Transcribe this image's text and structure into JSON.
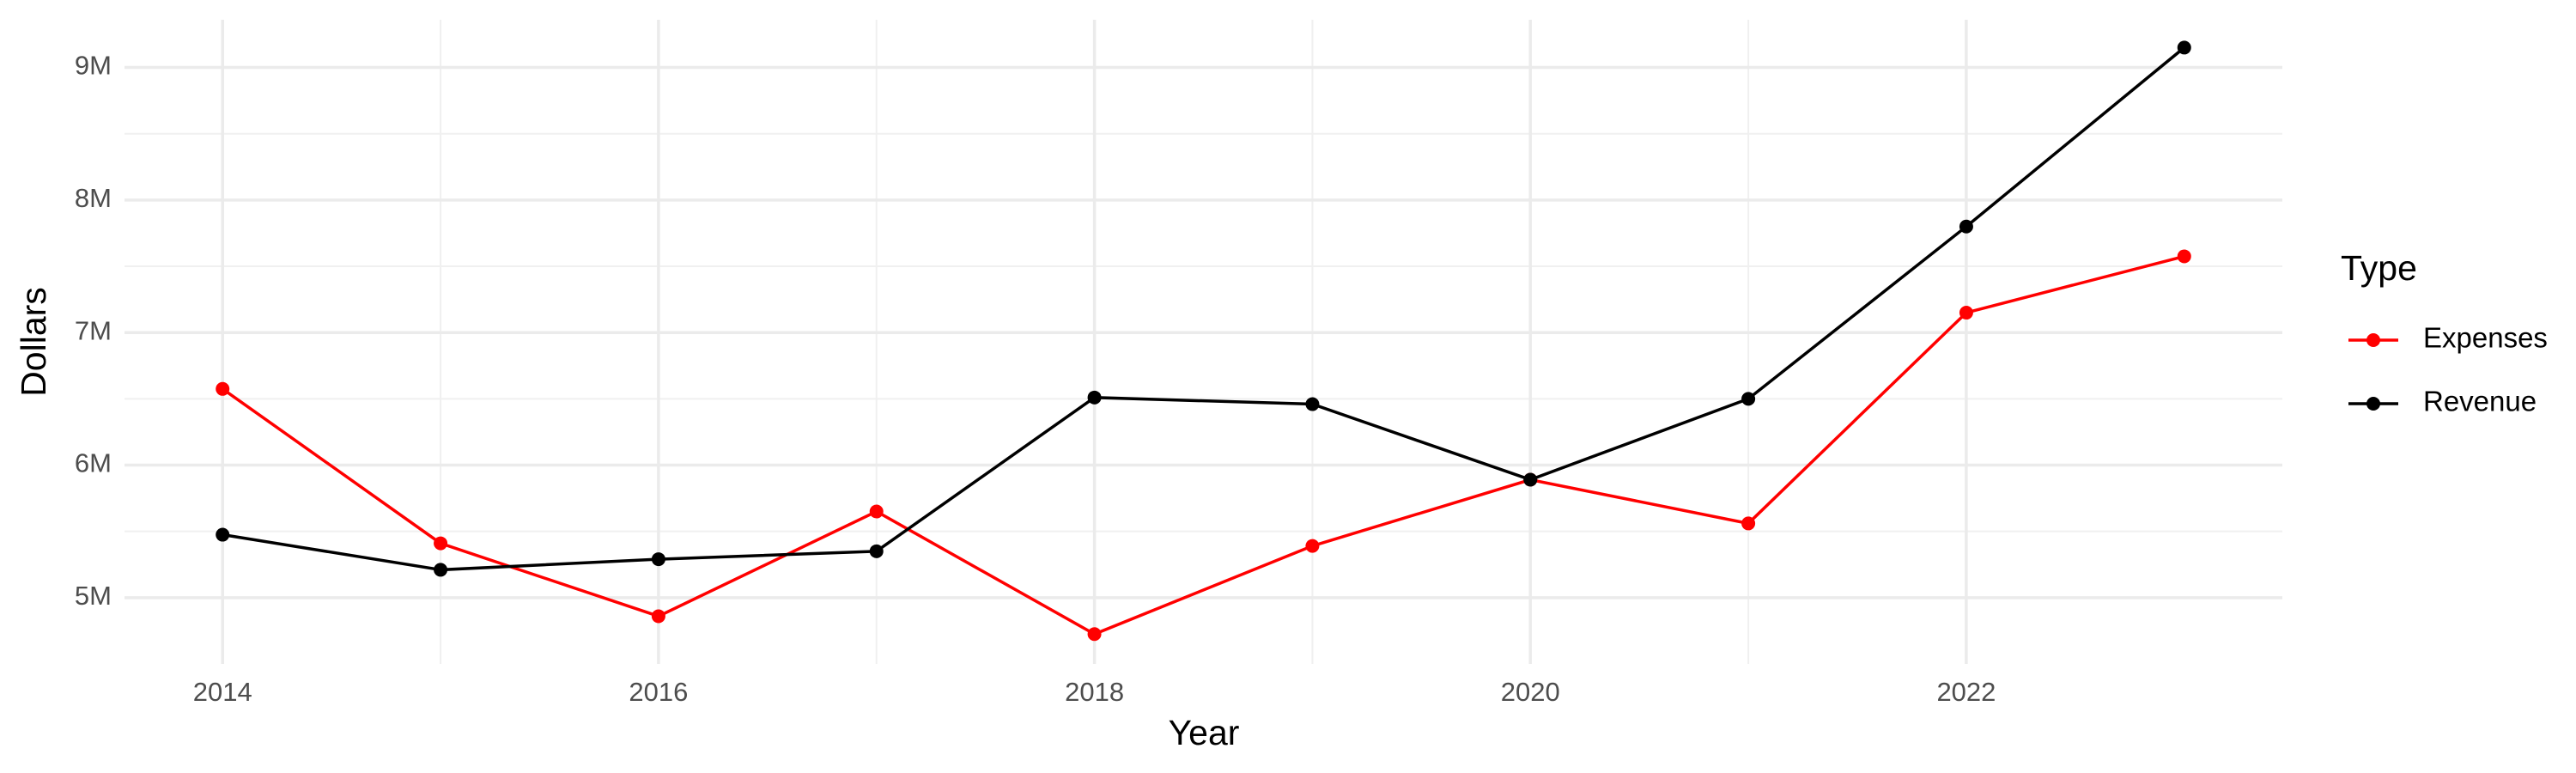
{
  "chart_data": {
    "type": "line",
    "x_label": "Year",
    "y_label": "Dollars",
    "x": [
      2014,
      2015,
      2016,
      2017,
      2018,
      2019,
      2020,
      2021,
      2022,
      2023
    ],
    "series": [
      {
        "name": "Expenses",
        "color": "#ff0000",
        "values": [
          6575000,
          5410000,
          4860000,
          5650000,
          4725000,
          5390000,
          5890000,
          5560000,
          7150000,
          7575000
        ]
      },
      {
        "name": "Revenue",
        "color": "#000000",
        "values": [
          5475000,
          5210000,
          5290000,
          5350000,
          6510000,
          6460000,
          5890000,
          6500000,
          7800000,
          9150000
        ]
      }
    ],
    "legend_title": "Type",
    "legend_position": "right",
    "xlim": [
      2013.55,
      2023.45
    ],
    "xticks": [
      2014,
      2016,
      2018,
      2020,
      2022
    ],
    "ylim": [
      4500000,
      9360000
    ],
    "yticks": [
      {
        "value": 5000000,
        "label": "5M"
      },
      {
        "value": 6000000,
        "label": "6M"
      },
      {
        "value": 7000000,
        "label": "7M"
      },
      {
        "value": 8000000,
        "label": "8M"
      },
      {
        "value": 9000000,
        "label": "9M"
      }
    ],
    "grid": true
  }
}
